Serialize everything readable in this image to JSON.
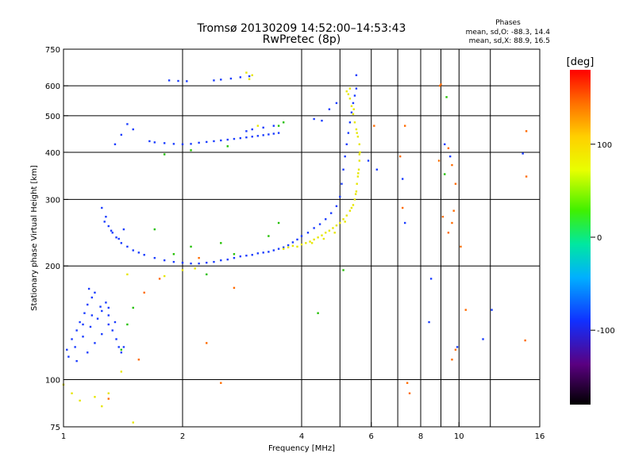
{
  "chart_data": {
    "type": "scatter",
    "title": "Tromsø 20130209 14:52:00–14:53:43",
    "subtitle": "RwPretec (8p)",
    "stats": {
      "heading": "Phases",
      "line_o": "mean, sd,O: -88.3, 14.4",
      "line_x": "mean, sd,X:  88.9, 16.5"
    },
    "xlabel": "Frequency [MHz]",
    "ylabel": "Stationary phase Virtual Height [km]",
    "x_scale": "log",
    "y_scale": "log",
    "xlim": [
      1,
      16
    ],
    "ylim": [
      75,
      750
    ],
    "x_ticks": [
      "1",
      "2",
      "4",
      "6",
      "8",
      "10",
      "16"
    ],
    "x_tick_values": [
      1,
      2,
      4,
      6,
      8,
      10,
      16
    ],
    "x_gridlines": [
      2,
      4,
      5,
      6,
      7,
      8,
      9,
      10,
      12,
      16
    ],
    "y_ticks": [
      "75",
      "100",
      "200",
      "300",
      "400",
      "500",
      "600",
      "750"
    ],
    "y_tick_values": [
      75,
      100,
      200,
      300,
      400,
      500,
      600,
      750
    ],
    "y_gridlines": [
      100,
      200,
      300,
      400,
      500,
      600
    ],
    "grid": true,
    "colorbar": {
      "label": "[deg]",
      "range": [
        -180,
        180
      ],
      "tick_labels": [
        "100",
        "0",
        "-100"
      ],
      "tick_values": [
        100,
        0,
        -100
      ]
    },
    "series": [
      {
        "values": [
          [
            1.02,
            120
          ],
          [
            1.05,
            128
          ],
          [
            1.08,
            135
          ],
          [
            1.1,
            142
          ],
          [
            1.13,
            150
          ],
          [
            1.15,
            158
          ],
          [
            1.18,
            165
          ],
          [
            1.2,
            170
          ],
          [
            1.03,
            115
          ],
          [
            1.07,
            122
          ],
          [
            1.12,
            130
          ],
          [
            1.17,
            138
          ],
          [
            1.22,
            145
          ],
          [
            1.25,
            152
          ],
          [
            1.28,
            160
          ],
          [
            1.3,
            155
          ],
          [
            1.08,
            112
          ],
          [
            1.15,
            118
          ],
          [
            1.2,
            125
          ],
          [
            1.25,
            132
          ],
          [
            1.3,
            140
          ],
          [
            1.33,
            135
          ],
          [
            1.36,
            128
          ],
          [
            1.38,
            122
          ],
          [
            1.12,
            140
          ],
          [
            1.18,
            148
          ],
          [
            1.24,
            156
          ],
          [
            1.3,
            148
          ],
          [
            1.35,
            142
          ],
          [
            1.4,
            118
          ],
          [
            1.42,
            122
          ],
          [
            1.16,
            174
          ],
          [
            1.25,
            285
          ],
          [
            1.28,
            270
          ],
          [
            1.3,
            255
          ],
          [
            1.33,
            245
          ],
          [
            1.36,
            238
          ],
          [
            1.4,
            230
          ],
          [
            1.45,
            225
          ],
          [
            1.5,
            220
          ],
          [
            1.55,
            217
          ],
          [
            1.6,
            214
          ],
          [
            1.7,
            210
          ],
          [
            1.8,
            207
          ],
          [
            1.9,
            205
          ],
          [
            2.0,
            204
          ],
          [
            2.1,
            203
          ],
          [
            2.2,
            203
          ],
          [
            2.3,
            204
          ],
          [
            2.4,
            205
          ],
          [
            2.5,
            207
          ],
          [
            2.6,
            208
          ],
          [
            2.7,
            210
          ],
          [
            2.8,
            212
          ],
          [
            2.9,
            213
          ],
          [
            3.0,
            214
          ],
          [
            3.1,
            216
          ],
          [
            3.2,
            217
          ],
          [
            3.3,
            218
          ],
          [
            3.4,
            220
          ],
          [
            3.5,
            222
          ],
          [
            3.6,
            224
          ],
          [
            3.7,
            227
          ],
          [
            3.8,
            231
          ],
          [
            3.9,
            235
          ],
          [
            4.0,
            240
          ],
          [
            4.15,
            245
          ],
          [
            4.3,
            252
          ],
          [
            4.45,
            258
          ],
          [
            4.6,
            266
          ],
          [
            4.75,
            276
          ],
          [
            4.9,
            288
          ],
          [
            5.0,
            305
          ],
          [
            5.05,
            330
          ],
          [
            5.1,
            360
          ],
          [
            5.15,
            390
          ],
          [
            5.2,
            420
          ],
          [
            5.25,
            450
          ],
          [
            5.3,
            480
          ],
          [
            5.35,
            510
          ],
          [
            5.4,
            540
          ],
          [
            5.45,
            565
          ],
          [
            5.5,
            590
          ],
          [
            5.5,
            640
          ],
          [
            1.27,
            262
          ],
          [
            1.32,
            248
          ],
          [
            1.38,
            236
          ],
          [
            1.42,
            250
          ],
          [
            1.65,
            428
          ],
          [
            1.7,
            425
          ],
          [
            1.8,
            423
          ],
          [
            1.9,
            421
          ],
          [
            2.0,
            420
          ],
          [
            2.1,
            421
          ],
          [
            2.2,
            424
          ],
          [
            2.3,
            426
          ],
          [
            2.4,
            428
          ],
          [
            2.5,
            430
          ],
          [
            2.6,
            432
          ],
          [
            2.7,
            434
          ],
          [
            2.8,
            436
          ],
          [
            2.9,
            438
          ],
          [
            3.0,
            440
          ],
          [
            3.1,
            442
          ],
          [
            3.2,
            444
          ],
          [
            3.3,
            446
          ],
          [
            3.4,
            448
          ],
          [
            3.5,
            450
          ],
          [
            2.9,
            455
          ],
          [
            3.0,
            460
          ],
          [
            3.2,
            465
          ],
          [
            3.4,
            470
          ],
          [
            1.85,
            620
          ],
          [
            1.95,
            618
          ],
          [
            2.05,
            617
          ],
          [
            2.4,
            620
          ],
          [
            2.5,
            623
          ],
          [
            2.65,
            627
          ],
          [
            2.8,
            632
          ],
          [
            2.95,
            636
          ],
          [
            1.45,
            475
          ],
          [
            1.5,
            460
          ],
          [
            1.4,
            445
          ],
          [
            1.35,
            420
          ],
          [
            4.3,
            490
          ],
          [
            4.5,
            485
          ],
          [
            4.7,
            520
          ],
          [
            4.9,
            540
          ],
          [
            7.2,
            340
          ],
          [
            7.3,
            260
          ],
          [
            6.2,
            360
          ],
          [
            5.9,
            380
          ],
          [
            8.5,
            185
          ],
          [
            8.4,
            142
          ],
          [
            9.9,
            122
          ],
          [
            11.5,
            128
          ],
          [
            12.1,
            153
          ],
          [
            9.2,
            420
          ],
          [
            9.5,
            390
          ],
          [
            14.5,
            397
          ]
        ]
      },
      {
        "values": [
          [
            3.9,
            225
          ],
          [
            4.0,
            228
          ],
          [
            4.1,
            230
          ],
          [
            4.2,
            232
          ],
          [
            4.3,
            235
          ],
          [
            4.4,
            238
          ],
          [
            4.5,
            241
          ],
          [
            4.6,
            245
          ],
          [
            4.7,
            248
          ],
          [
            4.8,
            252
          ],
          [
            4.9,
            256
          ],
          [
            5.0,
            260
          ],
          [
            5.1,
            266
          ],
          [
            5.2,
            272
          ],
          [
            5.3,
            280
          ],
          [
            5.4,
            290
          ],
          [
            5.45,
            300
          ],
          [
            5.5,
            315
          ],
          [
            5.52,
            330
          ],
          [
            5.55,
            345
          ],
          [
            5.58,
            360
          ],
          [
            5.6,
            380
          ],
          [
            5.62,
            400
          ],
          [
            5.6,
            420
          ],
          [
            5.55,
            440
          ],
          [
            5.5,
            460
          ],
          [
            5.45,
            480
          ],
          [
            5.4,
            505
          ],
          [
            5.35,
            530
          ],
          [
            5.3,
            555
          ],
          [
            5.25,
            570
          ],
          [
            5.2,
            580
          ],
          [
            3.6,
            222
          ],
          [
            3.7,
            224
          ],
          [
            3.8,
            226
          ],
          [
            4.25,
            230
          ],
          [
            4.55,
            236
          ],
          [
            4.85,
            245
          ],
          [
            5.15,
            262
          ],
          [
            5.35,
            285
          ],
          [
            5.48,
            310
          ],
          [
            5.56,
            352
          ],
          [
            5.6,
            395
          ],
          [
            5.52,
            450
          ],
          [
            5.42,
            520
          ],
          [
            5.3,
            590
          ],
          [
            1.0,
            97
          ],
          [
            1.05,
            92
          ],
          [
            1.1,
            88
          ],
          [
            1.2,
            90
          ],
          [
            1.25,
            85
          ],
          [
            1.3,
            92
          ],
          [
            1.4,
            105
          ],
          [
            1.5,
            77
          ],
          [
            1.8,
            188
          ],
          [
            2.0,
            195
          ],
          [
            2.15,
            197
          ],
          [
            1.45,
            190
          ],
          [
            2.9,
            650
          ],
          [
            3.0,
            640
          ],
          [
            2.95,
            625
          ],
          [
            3.1,
            470
          ]
        ]
      },
      {
        "values": [
          [
            7.3,
            470
          ],
          [
            7.1,
            390
          ],
          [
            7.2,
            285
          ],
          [
            7.5,
            92
          ],
          [
            9.4,
            410
          ],
          [
            9.6,
            370
          ],
          [
            9.8,
            330
          ],
          [
            9.7,
            280
          ],
          [
            9.6,
            260
          ],
          [
            9.4,
            245
          ],
          [
            10.1,
            225
          ],
          [
            9.8,
            120
          ],
          [
            9.6,
            113
          ],
          [
            10.4,
            153
          ],
          [
            14.8,
            455
          ],
          [
            14.8,
            345
          ],
          [
            14.7,
            127
          ],
          [
            8.9,
            380
          ],
          [
            9.1,
            270
          ],
          [
            9.0,
            605
          ],
          [
            8.95,
            600
          ],
          [
            7.4,
            98
          ],
          [
            6.1,
            470
          ],
          [
            1.3,
            89
          ],
          [
            1.55,
            113
          ],
          [
            1.6,
            170
          ],
          [
            1.75,
            185
          ],
          [
            2.2,
            210
          ],
          [
            2.3,
            125
          ],
          [
            2.5,
            98
          ],
          [
            2.7,
            175
          ]
        ]
      },
      {
        "values": [
          [
            1.4,
            120
          ],
          [
            1.45,
            140
          ],
          [
            1.5,
            155
          ],
          [
            1.9,
            215
          ],
          [
            2.1,
            225
          ],
          [
            2.3,
            190
          ],
          [
            2.5,
            230
          ],
          [
            2.7,
            215
          ],
          [
            3.3,
            240
          ],
          [
            3.5,
            260
          ],
          [
            1.7,
            250
          ],
          [
            1.8,
            395
          ],
          [
            2.1,
            405
          ],
          [
            2.6,
            415
          ],
          [
            3.5,
            470
          ],
          [
            3.6,
            480
          ],
          [
            4.4,
            150
          ],
          [
            9.3,
            560
          ],
          [
            9.2,
            350
          ],
          [
            5.1,
            195
          ]
        ]
      }
    ]
  }
}
